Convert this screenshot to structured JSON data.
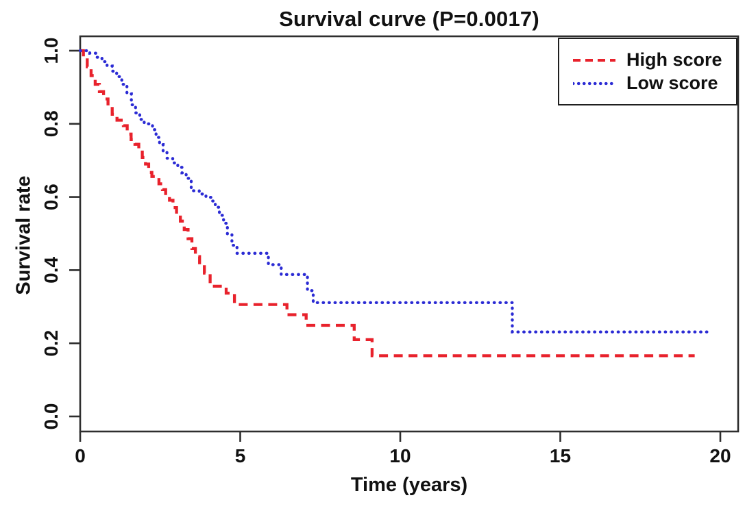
{
  "figure": {
    "title": "Survival curve (P=0.0017)"
  },
  "x_axis": {
    "label": "Time (years)",
    "ticks": [
      "0",
      "5",
      "10",
      "15",
      "20"
    ]
  },
  "y_axis": {
    "label": "Survival rate",
    "ticks": [
      "0.0",
      "0.2",
      "0.4",
      "0.6",
      "0.8",
      "1.0"
    ]
  },
  "legend": {
    "items": [
      {
        "label": "High score",
        "color": "#e8222c",
        "pattern": "dashed"
      },
      {
        "label": "Low score",
        "color": "#2b2bd4",
        "pattern": "dotted"
      }
    ]
  },
  "colors": {
    "axis": "#2e2e2e",
    "text": "#111111",
    "background": "#ffffff"
  },
  "chart_data": {
    "type": "line",
    "subtype": "kaplan-meier-step",
    "title": "Survival curve (P=0.0017)",
    "p_value": "0.0017",
    "xlabel": "Time (years)",
    "ylabel": "Survival rate",
    "xlim": [
      0,
      20.6
    ],
    "ylim": [
      0,
      1.04
    ],
    "grid": false,
    "legend_position": "top-right",
    "x_ticks": [
      0,
      5,
      10,
      15,
      20
    ],
    "y_ticks": [
      0.0,
      0.2,
      0.4,
      0.6,
      0.8,
      1.0
    ],
    "series": [
      {
        "name": "High score",
        "color": "#e8222c",
        "dash": "dashed",
        "end_time": 19.2,
        "points": [
          [
            0.0,
            1.0
          ],
          [
            0.1,
            0.98
          ],
          [
            0.22,
            0.956
          ],
          [
            0.34,
            0.932
          ],
          [
            0.47,
            0.908
          ],
          [
            0.6,
            0.888
          ],
          [
            0.73,
            0.868
          ],
          [
            0.87,
            0.848
          ],
          [
            1.0,
            0.826
          ],
          [
            1.15,
            0.81
          ],
          [
            1.35,
            0.795
          ],
          [
            1.47,
            0.772
          ],
          [
            1.59,
            0.757
          ],
          [
            1.71,
            0.744
          ],
          [
            1.83,
            0.727
          ],
          [
            1.94,
            0.708
          ],
          [
            2.04,
            0.69
          ],
          [
            2.14,
            0.667
          ],
          [
            2.24,
            0.656
          ],
          [
            2.46,
            0.636
          ],
          [
            2.57,
            0.62
          ],
          [
            2.67,
            0.602
          ],
          [
            2.79,
            0.591
          ],
          [
            2.9,
            0.571
          ],
          [
            3.01,
            0.553
          ],
          [
            3.13,
            0.534
          ],
          [
            3.25,
            0.511
          ],
          [
            3.37,
            0.486
          ],
          [
            3.49,
            0.459
          ],
          [
            3.6,
            0.437
          ],
          [
            3.73,
            0.415
          ],
          [
            3.88,
            0.392
          ],
          [
            4.06,
            0.356
          ],
          [
            4.56,
            0.337
          ],
          [
            4.82,
            0.306
          ],
          [
            6.46,
            0.278
          ],
          [
            7.06,
            0.249
          ],
          [
            8.56,
            0.21
          ],
          [
            9.12,
            0.166
          ]
        ]
      },
      {
        "name": "Low score",
        "color": "#2b2bd4",
        "dash": "dotted",
        "end_time": 19.62,
        "points": [
          [
            0.0,
            1.0
          ],
          [
            0.3,
            0.993
          ],
          [
            0.5,
            0.982
          ],
          [
            0.68,
            0.97
          ],
          [
            0.84,
            0.958
          ],
          [
            1.0,
            0.944
          ],
          [
            1.14,
            0.929
          ],
          [
            1.3,
            0.908
          ],
          [
            1.46,
            0.882
          ],
          [
            1.6,
            0.852
          ],
          [
            1.73,
            0.83
          ],
          [
            1.86,
            0.812
          ],
          [
            2.0,
            0.8
          ],
          [
            2.26,
            0.784
          ],
          [
            2.37,
            0.763
          ],
          [
            2.48,
            0.743
          ],
          [
            2.59,
            0.722
          ],
          [
            2.71,
            0.706
          ],
          [
            2.89,
            0.693
          ],
          [
            3.05,
            0.681
          ],
          [
            3.18,
            0.666
          ],
          [
            3.31,
            0.651
          ],
          [
            3.47,
            0.617
          ],
          [
            3.72,
            0.608
          ],
          [
            3.93,
            0.599
          ],
          [
            4.1,
            0.589
          ],
          [
            4.22,
            0.572
          ],
          [
            4.35,
            0.55
          ],
          [
            4.48,
            0.528
          ],
          [
            4.6,
            0.498
          ],
          [
            4.74,
            0.468
          ],
          [
            4.9,
            0.446
          ],
          [
            5.88,
            0.415
          ],
          [
            6.28,
            0.388
          ],
          [
            7.1,
            0.344
          ],
          [
            7.28,
            0.311
          ],
          [
            13.5,
            0.231
          ]
        ]
      }
    ]
  }
}
